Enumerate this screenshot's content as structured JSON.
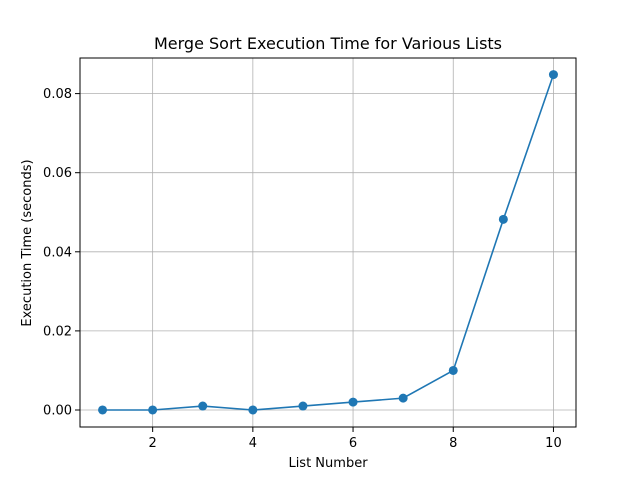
{
  "chart_data": {
    "type": "line",
    "title": "Merge Sort Execution Time for Various Lists",
    "xlabel": "List Number",
    "ylabel": "Execution Time (seconds)",
    "x": [
      1,
      2,
      3,
      4,
      5,
      6,
      7,
      8,
      9,
      10
    ],
    "series": [
      {
        "values": [
          0.0,
          0.0,
          0.001,
          0.0,
          0.001,
          0.002,
          0.003,
          0.01,
          0.0482,
          0.0848
        ],
        "color": "#1f77b4",
        "marker": "circle"
      }
    ],
    "xlim": [
      0.55,
      10.45
    ],
    "ylim": [
      -0.0043,
      0.089
    ],
    "xticks": [
      2,
      4,
      6,
      8,
      10
    ],
    "yticks": [
      0.0,
      0.02,
      0.04,
      0.06,
      0.08
    ],
    "xtick_labels": [
      "2",
      "4",
      "6",
      "8",
      "10"
    ],
    "ytick_labels": [
      "0.00",
      "0.02",
      "0.04",
      "0.06",
      "0.08"
    ],
    "grid": true,
    "legend": false
  }
}
